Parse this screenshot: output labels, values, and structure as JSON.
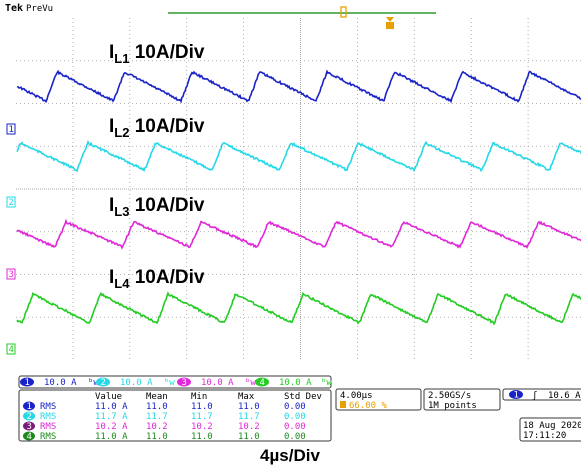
{
  "brand": {
    "tek": "Tek",
    "mode": "PreVu"
  },
  "colors": {
    "ch1": "#1a23c8",
    "ch2": "#25d8e8",
    "ch3": "#e028d8",
    "ch4": "#22cc22",
    "grid": "#9a9a9a",
    "trigger": "#e8a000",
    "record_bar": "#2e9a2e",
    "panel_border": "#3a3a3a"
  },
  "channels": [
    {
      "label_main": "I",
      "label_sub": "L1",
      "label_rest": " 10A/Div",
      "marker": "1"
    },
    {
      "label_main": "I",
      "label_sub": "L2",
      "label_rest": " 10A/Div",
      "marker": "2"
    },
    {
      "label_main": "I",
      "label_sub": "L3",
      "label_rest": " 10A/Div",
      "marker": "3"
    },
    {
      "label_main": "I",
      "label_sub": "L4",
      "label_rest": " 10A/Div",
      "marker": "4"
    }
  ],
  "scale_bar": [
    {
      "num": "1",
      "value": "10.0 A",
      "bw": "ᵇw"
    },
    {
      "num": "2",
      "value": "10.0 A",
      "bw": "ᵇw"
    },
    {
      "num": "3",
      "value": "10.0 A",
      "bw": "ᵇw"
    },
    {
      "num": "4",
      "value": "10.0 A",
      "bw": "ᵇw"
    }
  ],
  "measurements": {
    "headers": [
      "Value",
      "Mean",
      "Min",
      "Max",
      "Std Dev"
    ],
    "rows": [
      {
        "ch": "1",
        "type": "RMS",
        "value": "11.0 A",
        "mean": "11.0",
        "min": "11.0",
        "max": "11.0",
        "std": "0.00"
      },
      {
        "ch": "2",
        "type": "RMS",
        "value": "11.7 A",
        "mean": "11.7",
        "min": "11.7",
        "max": "11.7",
        "std": "0.00"
      },
      {
        "ch": "3",
        "type": "RMS",
        "value": "10.2 A",
        "mean": "10.2",
        "min": "10.2",
        "max": "10.2",
        "std": "0.00"
      },
      {
        "ch": "4",
        "type": "RMS",
        "value": "11.0 A",
        "mean": "11.0",
        "min": "11.0",
        "max": "11.0",
        "std": "0.00"
      }
    ]
  },
  "timebase": {
    "scale": "4.00µs",
    "position": "66.00 %",
    "position_icon": "T"
  },
  "acquisition": {
    "rate": "2.50GS/s",
    "points": "1M points"
  },
  "trigger": {
    "channel": "1",
    "slope": "ʃ",
    "level": "10.6 A"
  },
  "datetime": {
    "date": "18 Aug 2020",
    "time": "17:11:20"
  },
  "caption": "4µs/Div"
}
